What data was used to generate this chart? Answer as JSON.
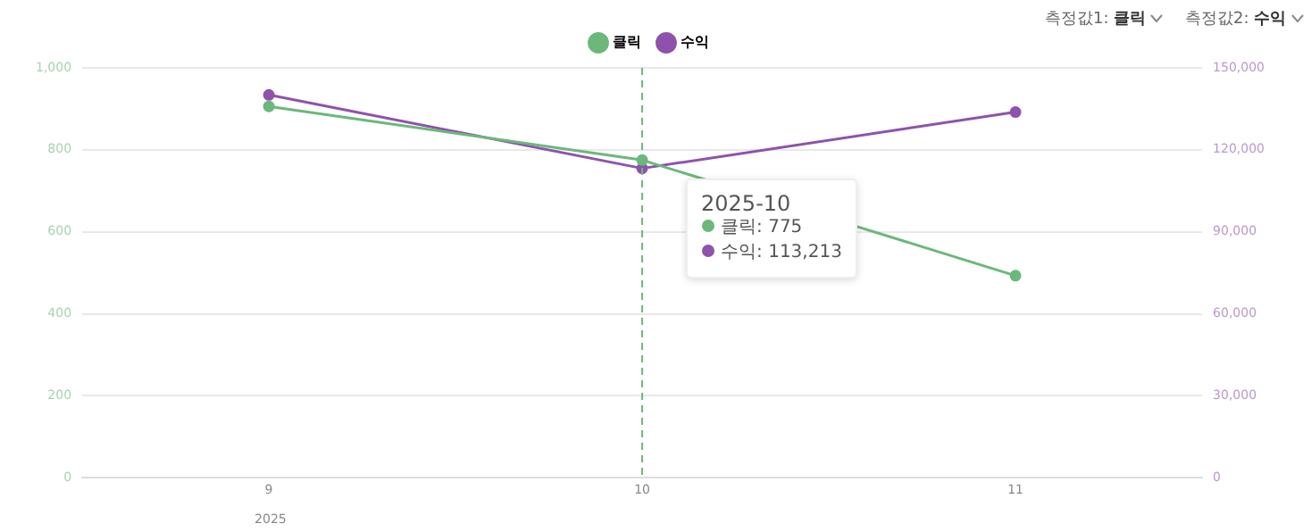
{
  "chart_data": {
    "type": "line",
    "categories": [
      "9",
      "10",
      "11"
    ],
    "series": [
      {
        "name": "클릭",
        "color": "#6bb87a",
        "values": [
          906,
          775,
          493
        ]
      },
      {
        "name": "수익",
        "color": "#8e52ad",
        "axis": "y2",
        "values": [
          140100,
          113213,
          133800
        ]
      }
    ],
    "ylim": [
      0,
      1000
    ],
    "yticks": [
      0,
      200,
      400,
      600,
      800,
      {
        "value": 1000,
        "label": "1,000"
      }
    ],
    "y2lim": [
      0,
      150000
    ],
    "y2ticks": [
      0,
      {
        "value": 30000,
        "label": "30,000"
      },
      {
        "value": 60000,
        "label": "60,000"
      },
      {
        "value": 90000,
        "label": "90,000"
      },
      {
        "value": 120000,
        "label": "120,000"
      },
      {
        "value": 150000,
        "label": "150,000"
      }
    ],
    "grid": "y",
    "legend": "top",
    "marker": "circle",
    "line_style": "solid",
    "ref_lines": [
      {
        "axis": "x",
        "value": "10",
        "color": "#6bb87a",
        "line_style": "dashed"
      }
    ],
    "annotations": [
      "측정값1:",
      "클릭",
      "측정값2:",
      "수익",
      "2025",
      "2025-10",
      "클릭: 775",
      "수익: 113,213"
    ]
  }
}
